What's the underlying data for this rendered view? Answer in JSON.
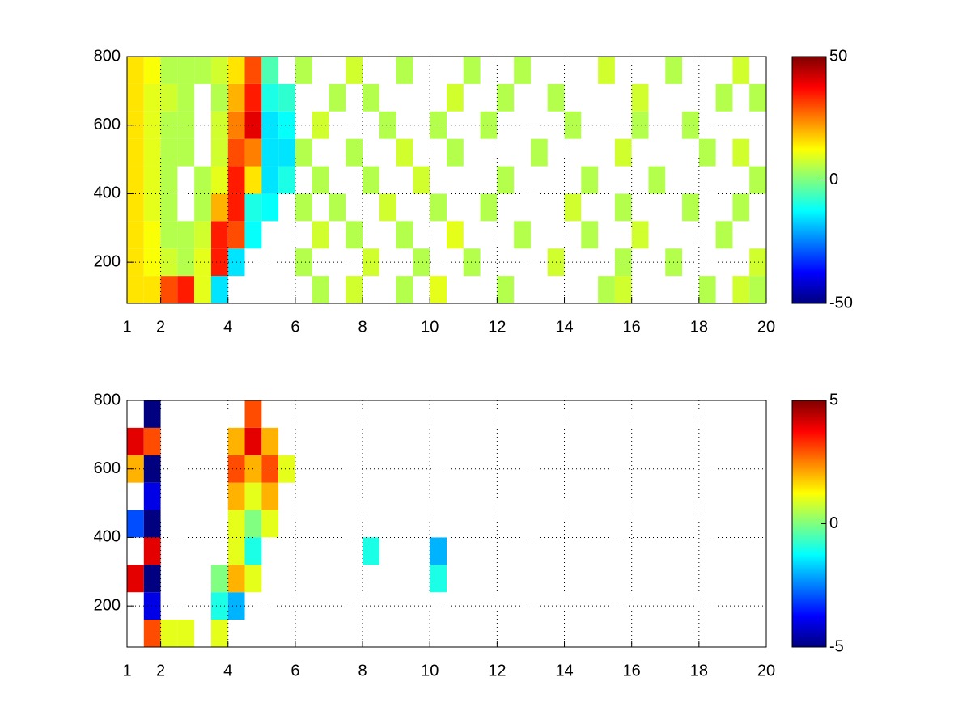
{
  "chart_data": [
    {
      "type": "heatmap",
      "colormap": "jet",
      "grid": true,
      "x_edges": [
        1,
        1.5,
        2,
        2.5,
        3,
        3.5,
        4,
        4.5,
        5,
        5.5,
        6,
        6.5,
        7,
        7.5,
        8,
        8.5,
        9,
        9.5,
        10,
        10.5,
        11,
        11.5,
        12,
        12.5,
        13,
        13.5,
        14,
        14.5,
        15,
        15.5,
        16,
        16.5,
        17,
        17.5,
        18,
        18.5,
        19,
        19.5,
        20
      ],
      "y_edges": [
        80,
        160,
        240,
        320,
        400,
        480,
        560,
        640,
        720,
        800
      ],
      "z": [
        [
          15,
          15,
          30,
          35,
          10,
          -15,
          null,
          null,
          null,
          null,
          null,
          5,
          null,
          8,
          null,
          null,
          5,
          null,
          10,
          null,
          null,
          null,
          5,
          null,
          null,
          null,
          null,
          null,
          5,
          8,
          null,
          null,
          null,
          null,
          5,
          null,
          8,
          5
        ],
        [
          15,
          12,
          8,
          5,
          10,
          35,
          -15,
          null,
          null,
          null,
          5,
          null,
          null,
          null,
          8,
          null,
          null,
          5,
          null,
          null,
          5,
          null,
          null,
          null,
          null,
          8,
          null,
          null,
          null,
          5,
          null,
          null,
          5,
          null,
          null,
          null,
          null,
          8
        ],
        [
          15,
          12,
          5,
          5,
          8,
          35,
          30,
          -12,
          null,
          null,
          null,
          8,
          null,
          5,
          null,
          null,
          5,
          null,
          null,
          10,
          null,
          null,
          null,
          5,
          null,
          null,
          null,
          5,
          null,
          null,
          8,
          null,
          null,
          null,
          null,
          5,
          null,
          null
        ],
        [
          15,
          10,
          5,
          null,
          5,
          20,
          35,
          -10,
          -12,
          null,
          5,
          null,
          5,
          null,
          null,
          8,
          null,
          null,
          5,
          null,
          null,
          5,
          null,
          null,
          null,
          null,
          8,
          null,
          null,
          5,
          null,
          null,
          null,
          5,
          null,
          null,
          5,
          null
        ],
        [
          15,
          10,
          5,
          null,
          5,
          10,
          35,
          15,
          -15,
          -10,
          null,
          5,
          null,
          null,
          5,
          null,
          null,
          8,
          null,
          null,
          null,
          null,
          5,
          null,
          null,
          null,
          null,
          5,
          null,
          null,
          null,
          5,
          null,
          null,
          null,
          null,
          null,
          5
        ],
        [
          15,
          10,
          5,
          5,
          null,
          8,
          30,
          25,
          -15,
          -15,
          5,
          null,
          null,
          5,
          null,
          null,
          8,
          null,
          null,
          5,
          null,
          null,
          null,
          null,
          5,
          null,
          null,
          null,
          null,
          8,
          null,
          null,
          null,
          null,
          5,
          null,
          8,
          null
        ],
        [
          15,
          10,
          5,
          5,
          null,
          8,
          25,
          40,
          -15,
          -12,
          null,
          8,
          null,
          null,
          null,
          5,
          null,
          null,
          5,
          null,
          null,
          5,
          null,
          null,
          null,
          null,
          5,
          null,
          null,
          null,
          5,
          null,
          null,
          5,
          null,
          null,
          null,
          null
        ],
        [
          15,
          10,
          8,
          5,
          null,
          5,
          20,
          35,
          -10,
          -8,
          null,
          null,
          5,
          null,
          5,
          null,
          null,
          null,
          null,
          8,
          null,
          null,
          5,
          null,
          null,
          5,
          null,
          null,
          null,
          null,
          8,
          null,
          null,
          null,
          null,
          5,
          null,
          5
        ],
        [
          15,
          12,
          5,
          5,
          5,
          8,
          15,
          30,
          -5,
          null,
          5,
          null,
          null,
          8,
          null,
          null,
          5,
          null,
          null,
          null,
          5,
          null,
          null,
          5,
          null,
          null,
          null,
          null,
          8,
          null,
          null,
          null,
          5,
          null,
          null,
          null,
          8,
          null
        ]
      ],
      "xlim": [
        1,
        20
      ],
      "ylim": [
        80,
        800
      ],
      "xticks": [
        1,
        2,
        4,
        6,
        8,
        10,
        12,
        14,
        16,
        18,
        20
      ],
      "yticks": [
        200,
        400,
        600,
        800
      ],
      "clim": [
        -50,
        50
      ],
      "cticks": [
        -50,
        0,
        50
      ]
    },
    {
      "type": "heatmap",
      "colormap": "jet",
      "grid": true,
      "x_edges": [
        1,
        1.5,
        2,
        2.5,
        3,
        3.5,
        4,
        4.5,
        5,
        5.5,
        6,
        6.5,
        7,
        7.5,
        8,
        8.5,
        9,
        9.5,
        10,
        10.5,
        11,
        11.5,
        12,
        12.5,
        13,
        13.5,
        14,
        14.5,
        15,
        15.5,
        16,
        16.5,
        17,
        17.5,
        18,
        18.5,
        19,
        19.5,
        20
      ],
      "y_edges": [
        80,
        160,
        240,
        320,
        400,
        480,
        560,
        640,
        720,
        800
      ],
      "z": [
        [
          null,
          3,
          1,
          1,
          null,
          1,
          null,
          null,
          null,
          null,
          null,
          null,
          null,
          null,
          null,
          null,
          null,
          null,
          null,
          null,
          null,
          null,
          null,
          null,
          null,
          null,
          null,
          null,
          null,
          null,
          null,
          null,
          null,
          null,
          null,
          null,
          null,
          null
        ],
        [
          null,
          -4,
          null,
          null,
          null,
          -1,
          -2,
          null,
          null,
          null,
          null,
          null,
          null,
          null,
          null,
          null,
          null,
          null,
          null,
          null,
          null,
          null,
          null,
          null,
          null,
          null,
          null,
          null,
          null,
          null,
          null,
          null,
          null,
          null,
          null,
          null,
          null,
          null
        ],
        [
          4,
          -5,
          null,
          null,
          null,
          0,
          2,
          1,
          null,
          null,
          null,
          null,
          null,
          null,
          null,
          null,
          null,
          null,
          -1,
          null,
          null,
          null,
          null,
          null,
          null,
          null,
          null,
          null,
          null,
          null,
          null,
          null,
          null,
          null,
          null,
          null,
          null,
          null
        ],
        [
          null,
          4,
          null,
          null,
          null,
          null,
          1,
          -1,
          null,
          null,
          null,
          null,
          null,
          null,
          -1,
          null,
          null,
          null,
          -2,
          null,
          null,
          null,
          null,
          null,
          null,
          null,
          null,
          null,
          null,
          null,
          null,
          null,
          null,
          null,
          null,
          null,
          null,
          null
        ],
        [
          -3,
          -5,
          null,
          null,
          null,
          null,
          1,
          0,
          1,
          null,
          null,
          null,
          null,
          null,
          null,
          null,
          null,
          null,
          null,
          null,
          null,
          null,
          null,
          null,
          null,
          null,
          null,
          null,
          null,
          null,
          null,
          null,
          null,
          null,
          null,
          null,
          null,
          null
        ],
        [
          null,
          -4,
          null,
          null,
          null,
          null,
          2,
          1,
          2,
          null,
          null,
          null,
          null,
          null,
          null,
          null,
          null,
          null,
          null,
          null,
          null,
          null,
          null,
          null,
          null,
          null,
          null,
          null,
          null,
          null,
          null,
          null,
          null,
          null,
          null,
          null,
          null,
          null
        ],
        [
          2,
          -5,
          null,
          null,
          null,
          null,
          3,
          2,
          3,
          1,
          null,
          null,
          null,
          null,
          null,
          null,
          null,
          null,
          null,
          null,
          null,
          null,
          null,
          null,
          null,
          null,
          null,
          null,
          null,
          null,
          null,
          null,
          null,
          null,
          null,
          null,
          null,
          null
        ],
        [
          4,
          3,
          null,
          null,
          null,
          null,
          2,
          4,
          2,
          null,
          null,
          null,
          null,
          null,
          null,
          null,
          null,
          null,
          null,
          null,
          null,
          null,
          null,
          null,
          null,
          null,
          null,
          null,
          null,
          null,
          null,
          null,
          null,
          null,
          null,
          null,
          null,
          null
        ],
        [
          null,
          -5,
          null,
          null,
          null,
          null,
          null,
          3,
          null,
          null,
          null,
          null,
          null,
          null,
          null,
          null,
          null,
          null,
          null,
          null,
          null,
          null,
          null,
          null,
          null,
          null,
          null,
          null,
          null,
          null,
          null,
          null,
          null,
          null,
          null,
          null,
          null,
          null
        ]
      ],
      "xlim": [
        1,
        20
      ],
      "ylim": [
        80,
        800
      ],
      "xticks": [
        1,
        2,
        4,
        6,
        8,
        10,
        12,
        14,
        16,
        18,
        20
      ],
      "yticks": [
        200,
        400,
        600,
        800
      ],
      "clim": [
        -5,
        5
      ],
      "cticks": [
        -5,
        0,
        5
      ]
    }
  ]
}
